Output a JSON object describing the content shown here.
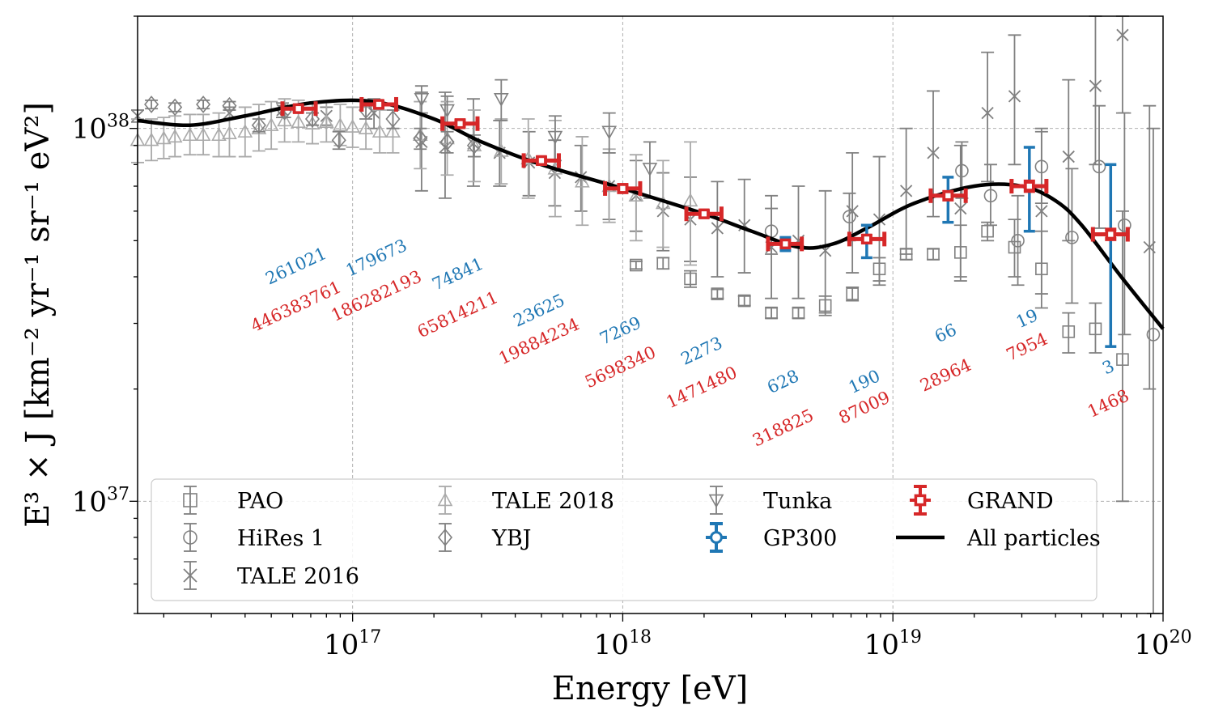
{
  "chart_data": {
    "type": "scatter",
    "xlabel": "Energy [eV]",
    "ylabel": "E³ × J [km⁻² yr⁻¹ sr⁻¹ eV²]",
    "x_scale": "log",
    "y_scale": "log",
    "xlim": [
      1.6e+16,
      1e+20
    ],
    "ylim": [
      5e+36,
      2e+38
    ],
    "grid": true,
    "legend_position": "lower-left",
    "x_ticks": [
      {
        "value": 1e+17,
        "base": "10",
        "exp": "17"
      },
      {
        "value": 1e+18,
        "base": "10",
        "exp": "18"
      },
      {
        "value": 1e+19,
        "base": "10",
        "exp": "19"
      },
      {
        "value": 1e+20,
        "base": "10",
        "exp": "20"
      }
    ],
    "y_ticks": [
      {
        "value": 1e+37,
        "base": "10",
        "exp": "37"
      },
      {
        "value": 1e+38,
        "base": "10",
        "exp": "38"
      }
    ],
    "colors": {
      "GRAND": "#d62728",
      "GP300": "#1f77b4",
      "gray": "#808080",
      "light_gray": "#aaaaaa",
      "all": "#000000"
    },
    "all_particles_curve": {
      "name": "All particles",
      "x": [
        1.6e+16,
        2.5e+16,
        4e+16,
        7e+16,
        1.2e+17,
        2e+17,
        3e+17,
        5e+17,
        1e+18,
        2e+18,
        3e+18,
        4.5e+18,
        6e+18,
        8e+18,
        1.2e+19,
        2e+19,
        3e+19,
        4e+19,
        5e+19,
        7e+19,
        1e+20
      ],
      "y": [
        1.05e+38,
        1.02e+38,
        1.08e+38,
        1.17e+38,
        1.18e+38,
        1.06e+38,
        9.2e+37,
        8e+37,
        6.9e+37,
        5.9e+37,
        5.3e+37,
        4.8e+37,
        4.9e+37,
        5.4e+37,
        6.3e+37,
        7e+37,
        7e+37,
        6.4e+37,
        5.5e+37,
        4e+37,
        2.9e+37
      ]
    },
    "series": [
      {
        "name": "GRAND",
        "marker": "square",
        "x": [
          6.3e+16,
          1.25e+17,
          2.5e+17,
          5e+17,
          1e+18,
          2e+18,
          4e+18,
          8e+18,
          1.6e+19,
          3.2e+19,
          6.4e+19
        ],
        "y": [
          1.13e+38,
          1.16e+38,
          1.03e+38,
          8.2e+37,
          6.9e+37,
          5.9e+37,
          4.9e+37,
          5.05e+37,
          6.6e+37,
          7e+37,
          5.2e+37
        ],
        "xerr": [
          [
            5.5e+16,
            7.3e+16
          ],
          [
            1.08e+17,
            1.45e+17
          ],
          [
            2.15e+17,
            2.9e+17
          ],
          [
            4.3e+17,
            5.8e+17
          ],
          [
            8.6e+17,
            1.16e+18
          ],
          [
            1.72e+18,
            2.32e+18
          ],
          [
            3.45e+18,
            4.6e+18
          ],
          [
            6.9e+18,
            9.3e+18
          ],
          [
            1.38e+19,
            1.86e+19
          ],
          [
            2.75e+19,
            3.7e+19
          ],
          [
            5.5e+19,
            7.4e+19
          ]
        ],
        "yerr": [
          [
            1.11e+38,
            1.15e+38
          ],
          [
            1.14e+38,
            1.18e+38
          ],
          [
            1.01e+38,
            1.05e+38
          ],
          [
            8.05e+37,
            8.35e+37
          ],
          [
            6.75e+37,
            7.05e+37
          ],
          [
            5.8e+37,
            6e+37
          ],
          [
            4.8e+37,
            5e+37
          ],
          [
            4.95e+37,
            5.15e+37
          ],
          [
            6.45e+37,
            6.75e+37
          ],
          [
            6.8e+37,
            7.2e+37
          ],
          [
            5.05e+37,
            5.35e+37
          ]
        ],
        "counts": [
          "446383761",
          "186282193",
          "65814211",
          "19884234",
          "5698340",
          "1471480",
          "318825",
          "87009",
          "28964",
          "7954",
          "1468"
        ]
      },
      {
        "name": "GP300",
        "marker": "circle",
        "x": [
          6.3e+16,
          1.25e+17,
          2.5e+17,
          5e+17,
          1e+18,
          2e+18,
          4e+18,
          8e+18,
          1.6e+19,
          3.2e+19,
          6.4e+19
        ],
        "y": [
          1.13e+38,
          1.16e+38,
          1.03e+38,
          8.2e+37,
          6.9e+37,
          5.9e+37,
          4.9e+37,
          5.05e+37,
          6.6e+37,
          7e+37,
          5.2e+37
        ],
        "yerr": [
          [
            1.12e+38,
            1.14e+38
          ],
          [
            1.15e+38,
            1.17e+38
          ],
          [
            1.02e+38,
            1.04e+38
          ],
          [
            8.1e+37,
            8.3e+37
          ],
          [
            6.8e+37,
            7e+37
          ],
          [
            5.8e+37,
            6e+37
          ],
          [
            4.7e+37,
            5.1e+37
          ],
          [
            4.5e+37,
            5.5e+37
          ],
          [
            5.6e+37,
            7.4e+37
          ],
          [
            5.3e+37,
            8.9e+37
          ],
          [
            2.6e+37,
            8e+37
          ]
        ],
        "counts": [
          "261021",
          "179673",
          "74841",
          "23625",
          "7269",
          "2273",
          "628",
          "190",
          "66",
          "19",
          "3"
        ]
      },
      {
        "name": "PAO",
        "marker": "open-square",
        "x": [
          1.12e+18,
          1.41e+18,
          1.78e+18,
          2.24e+18,
          2.82e+18,
          3.55e+18,
          4.47e+18,
          5.62e+18,
          7.08e+18,
          8.91e+18,
          1.12e+19,
          1.41e+19,
          1.78e+19,
          2.24e+19,
          2.82e+19,
          3.55e+19,
          4.47e+19,
          5.62e+19,
          7.08e+19
        ],
        "y": [
          4.3e+37,
          4.35e+37,
          3.95e+37,
          3.6e+37,
          3.45e+37,
          3.2e+37,
          3.2e+37,
          3.35e+37,
          3.6e+37,
          4.2e+37,
          4.6e+37,
          4.6e+37,
          4.65e+37,
          5.3e+37,
          4.8e+37,
          4.2e+37,
          2.85e+37,
          2.9e+37,
          2.4e+37
        ],
        "yerr": [
          [
            4.2e+37,
            4.4e+37
          ],
          [
            4.2e+37,
            4.5e+37
          ],
          [
            3.75e+37,
            4.15e+37
          ],
          [
            3.5e+37,
            3.7e+37
          ],
          [
            3.35e+37,
            3.55e+37
          ],
          [
            3.1e+37,
            3.3e+37
          ],
          [
            3.1e+37,
            3.3e+37
          ],
          [
            3.15e+37,
            3.55e+37
          ],
          [
            3.45e+37,
            3.75e+37
          ],
          [
            3.9e+37,
            4.5e+37
          ],
          [
            4.45e+37,
            4.75e+37
          ],
          [
            4.45e+37,
            4.75e+37
          ],
          [
            3.9e+37,
            5.5e+37
          ],
          [
            5e+37,
            5.6e+37
          ],
          [
            4e+37,
            5.7e+37
          ],
          [
            3.3e+37,
            5.3e+37
          ],
          [
            2.5e+37,
            3.2e+37
          ],
          [
            2.5e+37,
            3.4e+37
          ],
          [
            1e+37,
            6e+37
          ]
        ]
      },
      {
        "name": "HiRes 1",
        "marker": "open-circle",
        "x": [
          3.55e+18,
          6.9e+18,
          1.8e+19,
          2.3e+19,
          2.9e+19,
          3.55e+19,
          4.6e+19,
          5.8e+19,
          7.2e+19,
          9.2e+19
        ],
        "y": [
          5.3e+37,
          5.8e+37,
          7.7e+37,
          6.6e+37,
          5e+37,
          7.9e+37,
          5.1e+37,
          7.9e+37,
          5.5e+37,
          2.8e+37
        ],
        "yerr": [
          [
            4.6e+37,
            6.1e+37
          ],
          [
            5e+37,
            6.7e+37
          ],
          [
            6.5e+37,
            9.2e+37
          ],
          [
            5.5e+37,
            8e+37
          ],
          [
            3.8e+37,
            6.6e+37
          ],
          [
            6.3e+37,
            1e+38
          ],
          [
            3.4e+37,
            7.8e+37
          ],
          [
            5.4e+37,
            1.15e+38
          ],
          [
            2.8e+37,
            1.1e+38
          ],
          [
            5e+36,
            1e+38
          ]
        ]
      },
      {
        "name": "TALE 2016",
        "marker": "x",
        "x": [
          1.6e+16,
          3.5e+16,
          5.5e+16,
          8e+16,
          1.2e+17,
          1.8e+17,
          2.2e+17,
          2.8e+17,
          3.5e+17,
          4.5e+17,
          5.6e+17,
          7e+17,
          8.9e+17,
          1.12e+18,
          1.41e+18,
          1.78e+18,
          2.24e+18,
          2.82e+18,
          3.55e+18,
          4.47e+18,
          5.62e+18,
          7.08e+18,
          8.91e+18,
          1.12e+19,
          1.41e+19,
          1.78e+19,
          2.24e+19,
          2.82e+19,
          3.55e+19,
          4.47e+19,
          5.62e+19,
          7.08e+19,
          8.91e+19
        ],
        "y": [
          1.08e+38,
          1.1e+38,
          1.12e+38,
          1.08e+38,
          1.1e+38,
          9.2e+37,
          8.9e+37,
          9.1e+37,
          8.6e+37,
          8.1e+37,
          7.6e+37,
          7.4e+37,
          7e+37,
          6.6e+37,
          6e+37,
          5.7e+37,
          5.4e+37,
          5.5e+37,
          4.8e+37,
          5e+37,
          4.7e+37,
          6e+37,
          5.7e+37,
          6.8e+37,
          8.6e+37,
          6.1e+37,
          1.1e+38,
          1.22e+38,
          6e+37,
          8.4e+37,
          1.3e+38,
          1.78e+38,
          4.8e+37
        ],
        "yerr": [
          [
            1.04e+38,
            1.12e+38
          ],
          [
            1.06e+38,
            1.14e+38
          ],
          [
            1.07e+38,
            1.17e+38
          ],
          [
            1.02e+38,
            1.14e+38
          ],
          [
            1e+38,
            1.2e+38
          ],
          [
            6.8e+37,
            1.25e+38
          ],
          [
            6.5e+37,
            1.25e+38
          ],
          [
            7e+37,
            1.2e+38
          ],
          [
            7e+37,
            1.05e+38
          ],
          [
            6.6e+37,
            9.8e+37
          ],
          [
            6.2e+37,
            9.3e+37
          ],
          [
            6e+37,
            9e+37
          ],
          [
            5.7e+37,
            8.6e+37
          ],
          [
            5.3e+37,
            8.2e+37
          ],
          [
            4.7e+37,
            7.6e+37
          ],
          [
            4.4e+37,
            7.4e+37
          ],
          [
            4e+37,
            7.2e+37
          ],
          [
            4.1e+37,
            7.3e+37
          ],
          [
            3.5e+37,
            6.6e+37
          ],
          [
            3.5e+37,
            7e+37
          ],
          [
            3.2e+37,
            6.8e+37
          ],
          [
            4.1e+37,
            8.6e+37
          ],
          [
            3.8e+37,
            8.4e+37
          ],
          [
            4.6e+37,
            1e+38
          ],
          [
            5.8e+37,
            1.26e+38
          ],
          [
            4e+37,
            9e+37
          ],
          [
            7.2e+37,
            1.6e+38
          ],
          [
            8e+37,
            1.78e+38
          ],
          [
            3.6e+37,
            9.8e+37
          ],
          [
            5e+37,
            1.35e+38
          ],
          [
            8e+37,
            2e+38
          ],
          [
            1.1e+38,
            2e+38
          ],
          [
            2e+37,
            1.15e+38
          ]
        ]
      },
      {
        "name": "TALE 2018",
        "marker": "triangle-up",
        "x": [
          1.6e+16,
          1.8e+16,
          2e+16,
          2.2e+16,
          2.5e+16,
          2.8e+16,
          3.2e+16,
          3.5e+16,
          4e+16,
          4.5e+16,
          5e+16,
          5.6e+16,
          6.3e+16,
          7.1e+16,
          8e+16,
          9e+16,
          1e+17,
          1.12e+17,
          1.26e+17,
          1.41e+17,
          1.78e+17,
          2.24e+17,
          2.82e+17,
          3.55e+17,
          4.47e+17,
          5.62e+17,
          7.08e+17,
          8.91e+17,
          1.12e+18,
          1.41e+18,
          1.78e+18
        ],
        "y": [
          9.3e+37,
          9.3e+37,
          9.4e+37,
          9.5e+37,
          9.6e+37,
          9.6e+37,
          9.6e+37,
          9.7e+37,
          9.8e+37,
          1e+38,
          1.02e+38,
          1.05e+38,
          1.04e+38,
          1.03e+38,
          1.04e+38,
          1.02e+38,
          1.01e+38,
          1e+38,
          9.8e+37,
          9.8e+37,
          9.6e+37,
          9.4e+37,
          9e+37,
          8.7e+37,
          8.3e+37,
          7.8e+37,
          7.2e+37,
          7e+37,
          6.6e+37,
          6.3e+37,
          6.4e+37
        ],
        "yerr": [
          [
            8.1e+37,
            1.06e+38
          ],
          [
            8.2e+37,
            1.06e+38
          ],
          [
            8.3e+37,
            1.07e+38
          ],
          [
            8.4e+37,
            1.08e+38
          ],
          [
            8.5e+37,
            1.09e+38
          ],
          [
            8.5e+37,
            1.09e+38
          ],
          [
            8.4e+37,
            1.1e+38
          ],
          [
            8.4e+37,
            1.12e+38
          ],
          [
            8.4e+37,
            1.14e+38
          ],
          [
            8.7e+37,
            1.16e+38
          ],
          [
            8.8e+37,
            1.18e+38
          ],
          [
            9.2e+37,
            1.2e+38
          ],
          [
            9.2e+37,
            1.19e+38
          ],
          [
            9.1e+37,
            1.17e+38
          ],
          [
            9.2e+37,
            1.18e+38
          ],
          [
            9e+37,
            1.16e+38
          ],
          [
            8.9e+37,
            1.14e+38
          ],
          [
            8.8e+37,
            1.14e+38
          ],
          [
            8.6e+37,
            1.12e+38
          ],
          [
            8.6e+37,
            1.12e+38
          ],
          [
            7.8e+37,
            1.18e+38
          ],
          [
            7.5e+37,
            1.18e+38
          ],
          [
            7.2e+37,
            1.12e+38
          ],
          [
            7.1e+37,
            1.06e+38
          ],
          [
            6.5e+37,
            1.06e+38
          ],
          [
            5.8e+37,
            1.05e+38
          ],
          [
            5.5e+37,
            9.5e+37
          ],
          [
            5.6e+37,
            8.8e+37
          ],
          [
            5e+37,
            8.5e+37
          ],
          [
            4.8e+37,
            8.2e+37
          ],
          [
            4.3e+37,
            9.2e+37
          ]
        ]
      },
      {
        "name": "YBJ",
        "marker": "open-diamond",
        "x": [
          1.8e+16,
          2.2e+16,
          2.8e+16,
          3.5e+16,
          4.5e+16,
          5.6e+16,
          7.1e+16,
          8.9e+16,
          1.12e+17,
          1.41e+17,
          1.78e+17,
          2.24e+17,
          2.82e+17
        ],
        "y": [
          1.16e+38,
          1.14e+38,
          1.16e+38,
          1.15e+38,
          1.02e+38,
          1.11e+38,
          1.06e+38,
          9.3e+37,
          1.12e+38,
          1.06e+38,
          9.4e+37,
          9.2e+37,
          9e+37
        ],
        "yerr": [
          [
            1.13e+38,
            1.19e+38
          ],
          [
            1.11e+38,
            1.17e+38
          ],
          [
            1.13e+38,
            1.19e+38
          ],
          [
            1.12e+38,
            1.18e+38
          ],
          [
            9.8e+37,
            1.06e+38
          ],
          [
            1.07e+38,
            1.15e+38
          ],
          [
            1.02e+38,
            1.1e+38
          ],
          [
            8.8e+37,
            9.8e+37
          ],
          [
            1.06e+38,
            1.18e+38
          ],
          [
            1e+38,
            1.12e+38
          ],
          [
            8.8e+37,
            1e+38
          ],
          [
            8.6e+37,
            9.8e+37
          ],
          [
            8.4e+37,
            9.6e+37
          ]
        ]
      },
      {
        "name": "Tunka",
        "marker": "triangle-down",
        "x": [
          1.8e+17,
          2.24e+17,
          3.55e+17,
          5.62e+17,
          8.91e+17,
          1.26e+18
        ],
        "y": [
          1.2e+38,
          1.12e+38,
          1.2e+38,
          9.5e+37,
          9.8e+37,
          7.8e+37
        ],
        "yerr": [
          [
            1.1e+38,
            1.3e+38
          ],
          [
            1.02e+38,
            1.22e+38
          ],
          [
            1.05e+38,
            1.35e+38
          ],
          [
            8.2e+37,
            1.08e+38
          ],
          [
            8.6e+37,
            1.1e+38
          ],
          [
            6.5e+37,
            9.2e+37
          ]
        ]
      }
    ],
    "legend": [
      {
        "label": "PAO",
        "marker": "open-square"
      },
      {
        "label": "HiRes 1",
        "marker": "open-circle"
      },
      {
        "label": "TALE 2016",
        "marker": "x"
      },
      {
        "label": "TALE 2018",
        "marker": "triangle-up"
      },
      {
        "label": "YBJ",
        "marker": "open-diamond"
      },
      {
        "label": "Tunka",
        "marker": "triangle-down"
      },
      {
        "label": "GP300",
        "marker": "circle"
      },
      {
        "label": "GRAND",
        "marker": "square"
      },
      {
        "label": "All particles",
        "marker": "line"
      }
    ]
  }
}
